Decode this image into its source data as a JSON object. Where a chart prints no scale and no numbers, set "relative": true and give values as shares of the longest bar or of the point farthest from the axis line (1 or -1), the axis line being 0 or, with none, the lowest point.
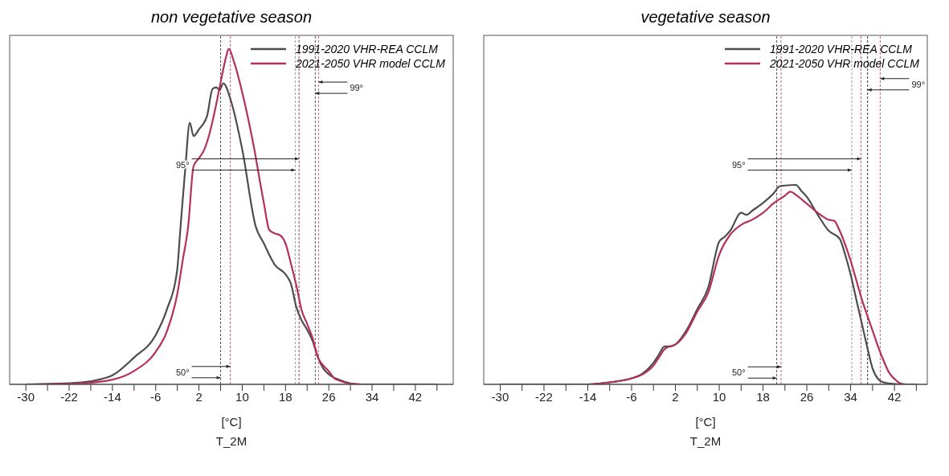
{
  "chart_data": [
    {
      "type": "line",
      "title": "non vegetative season",
      "xlabel": "[°C]\nT_2M",
      "relative": true,
      "legend": "top right",
      "xlim": [
        -33,
        49
      ],
      "xticks": [
        -30,
        {
          "value": -26,
          "label": null
        },
        -22,
        {
          "value": -18,
          "label": null
        },
        -14,
        {
          "value": -10,
          "label": null
        },
        -6,
        {
          "value": -2,
          "label": null
        },
        2,
        {
          "value": 6,
          "label": null
        },
        10,
        {
          "value": 14,
          "label": null
        },
        18,
        {
          "value": 22,
          "label": null
        },
        26,
        {
          "value": 30,
          "label": null
        },
        34,
        {
          "value": 38,
          "label": null
        },
        42,
        {
          "value": 46,
          "label": null
        }
      ],
      "series": [
        {
          "name": "1991-2020 VHR-REA CCLM",
          "color": "#4d4d4d",
          "x": [
            -30,
            -20,
            -16,
            -14,
            -10,
            -6,
            -4,
            -2,
            -1.5,
            -0.5,
            0.3,
            1,
            2,
            3.5,
            4.5,
            5.2,
            5.8,
            6.5,
            8,
            10,
            12.5,
            14,
            15,
            16,
            18,
            19,
            20,
            21,
            22,
            23,
            24,
            25,
            26,
            28,
            30,
            32,
            46
          ],
          "values": [
            0,
            0.005,
            0.016,
            0.027,
            0.08,
            0.147,
            0.22,
            0.345,
            0.45,
            0.65,
            0.78,
            0.74,
            0.76,
            0.8,
            0.88,
            0.885,
            0.877,
            0.897,
            0.84,
            0.7,
            0.47,
            0.42,
            0.386,
            0.357,
            0.328,
            0.3,
            0.23,
            0.19,
            0.163,
            0.13,
            0.08,
            0.047,
            0.03,
            0.013,
            0.003,
            0,
            0
          ]
        },
        {
          "name": "2021-2050 VHR model CCLM",
          "color": "#b5305e",
          "x": [
            -30,
            -20,
            -14,
            -10,
            -6,
            -4,
            -2,
            -1,
            0,
            1,
            2,
            3,
            4,
            5,
            6,
            7,
            7.5,
            8.5,
            10,
            12,
            14,
            15,
            16,
            17,
            18,
            19,
            20,
            21,
            22,
            23,
            24,
            25,
            26,
            27,
            28,
            30,
            32,
            46
          ],
          "values": [
            0,
            0.003,
            0.014,
            0.04,
            0.097,
            0.155,
            0.27,
            0.37,
            0.47,
            0.65,
            0.674,
            0.7,
            0.75,
            0.82,
            0.9,
            0.975,
            1,
            0.96,
            0.87,
            0.72,
            0.54,
            0.46,
            0.45,
            0.444,
            0.42,
            0.36,
            0.295,
            0.22,
            0.18,
            0.138,
            0.08,
            0.056,
            0.039,
            0.018,
            0.011,
            0.002,
            0,
            0
          ]
        }
      ],
      "ref_lines": [
        {
          "axis": "x",
          "value": 6,
          "color": "#555555",
          "line_style": "dashed"
        },
        {
          "axis": "x",
          "value": 7.8,
          "color": "#d0587a",
          "line_style": "dashed"
        },
        {
          "axis": "x",
          "value": 19.8,
          "color": "#9a9a9a",
          "line_style": "dashed"
        },
        {
          "axis": "x",
          "value": 20.5,
          "color": "#b5305e",
          "line_style": "dashed"
        },
        {
          "axis": "x",
          "value": 23.5,
          "color": "#555555",
          "line_style": "dashed"
        },
        {
          "axis": "x",
          "value": 24.1,
          "color": "#d0587a",
          "line_style": "dashed"
        }
      ],
      "annotations": [
        "50°",
        "95°",
        "99°"
      ]
    },
    {
      "type": "line",
      "title": "vegetative season",
      "xlabel": "[°C]\nT_2M",
      "relative": true,
      "legend": "top right",
      "xlim": [
        -33,
        48
      ],
      "xticks": [
        -30,
        {
          "value": -26,
          "label": null
        },
        -22,
        {
          "value": -18,
          "label": null
        },
        -14,
        {
          "value": -10,
          "label": null
        },
        -6,
        {
          "value": -2,
          "label": null
        },
        2,
        {
          "value": 6,
          "label": null
        },
        10,
        {
          "value": 14,
          "label": null
        },
        18,
        {
          "value": 22,
          "label": null
        },
        26,
        {
          "value": 30,
          "label": null
        },
        34,
        {
          "value": 38,
          "label": null
        },
        42,
        {
          "value": 46,
          "label": null
        }
      ],
      "series": [
        {
          "name": "1991-2020 VHR-REA CCLM",
          "color": "#4d4d4d",
          "x": [
            -30,
            -14,
            -10,
            -6,
            -4,
            -2,
            -1,
            0,
            1,
            2,
            4,
            6,
            8,
            10,
            11,
            12,
            14,
            15,
            16,
            18,
            20,
            21,
            22,
            24,
            25,
            26,
            28,
            30,
            32,
            33,
            34,
            35,
            36,
            37,
            38,
            39,
            40,
            42,
            44,
            46
          ],
          "values": [
            0,
            0,
            0.01,
            0.03,
            0.054,
            0.108,
            0.15,
            0.19,
            0.19,
            0.2,
            0.27,
            0.377,
            0.486,
            0.716,
            0.74,
            0.77,
            0.86,
            0.85,
            0.87,
            0.91,
            0.96,
            0.993,
            0.997,
            1,
            0.97,
            0.94,
            0.85,
            0.77,
            0.73,
            0.65,
            0.55,
            0.43,
            0.31,
            0.19,
            0.08,
            0.027,
            0.01,
            0.002,
            0,
            0
          ]
        },
        {
          "name": "2021-2050 VHR model CCLM",
          "color": "#b5305e",
          "x": [
            -30,
            -14,
            -10,
            -6,
            -4,
            -2,
            -1,
            0,
            1,
            2,
            4,
            6,
            8,
            10,
            12,
            14,
            16,
            18,
            20,
            22,
            23,
            24,
            26,
            28,
            30,
            31,
            32,
            34,
            36,
            38,
            39,
            40,
            41,
            42,
            43,
            44,
            46
          ],
          "values": [
            0,
            0,
            0.01,
            0.03,
            0.05,
            0.094,
            0.135,
            0.176,
            0.19,
            0.2,
            0.26,
            0.365,
            0.46,
            0.65,
            0.75,
            0.8,
            0.825,
            0.86,
            0.91,
            0.946,
            0.966,
            0.95,
            0.906,
            0.86,
            0.825,
            0.82,
            0.77,
            0.62,
            0.43,
            0.27,
            0.19,
            0.12,
            0.06,
            0.027,
            0.006,
            0,
            0
          ]
        }
      ],
      "ref_lines": [
        {
          "axis": "x",
          "value": 20.5,
          "color": "#555555",
          "line_style": "dashed"
        },
        {
          "axis": "x",
          "value": 21.3,
          "color": "#d0587a",
          "line_style": "dashed"
        },
        {
          "axis": "x",
          "value": 34.2,
          "color": "#9a9a9a",
          "line_style": "dashed"
        },
        {
          "axis": "x",
          "value": 35.9,
          "color": "#d0587a",
          "line_style": "dashed"
        },
        {
          "axis": "x",
          "value": 37.1,
          "color": "#333333",
          "line_style": "dashed"
        },
        {
          "axis": "x",
          "value": 39.4,
          "color": "#d0587a",
          "line_style": "dashed"
        }
      ],
      "annotations": [
        "50°",
        "95°",
        "99°"
      ]
    }
  ]
}
